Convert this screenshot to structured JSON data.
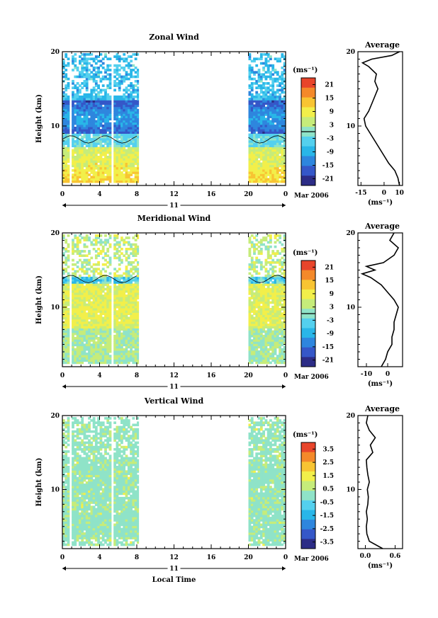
{
  "chart_data": [
    {
      "type": "heatmap",
      "title": "Zonal Wind",
      "ylabel": "Height (km)",
      "ylim": [
        2,
        20
      ],
      "y_ticks": [
        "10",
        "20"
      ],
      "x_ticks": [
        "0",
        "4",
        "8",
        "12",
        "16",
        "20",
        "0"
      ],
      "xlim": [
        0,
        24
      ],
      "day_label": "11",
      "date_label": "Mar 2006",
      "colorbar": {
        "unit": "(ms⁻¹)",
        "ticks": [
          "21",
          "15",
          "9",
          "3",
          "-3",
          "-9",
          "-15",
          "-21"
        ],
        "range": [
          -24,
          24
        ]
      },
      "data_windows_hours": [
        [
          0,
          8.2
        ],
        [
          20,
          24
        ]
      ],
      "average_profile": {
        "title": "Average",
        "xlabel": "(ms⁻¹)",
        "x_ticks": [
          "-15",
          "0",
          "10"
        ],
        "xlim": [
          -17,
          12
        ],
        "heights_km": [
          2,
          3,
          4,
          5,
          6,
          7,
          8,
          9,
          10,
          11,
          12,
          13,
          14,
          15,
          16,
          17,
          18,
          18.5,
          19,
          19.5,
          20
        ],
        "values": [
          10,
          9,
          7,
          3,
          0,
          -3,
          -6,
          -9,
          -12,
          -13,
          -10,
          -8,
          -6,
          -4,
          -6,
          -5,
          -10,
          -14,
          -8,
          5,
          10
        ]
      }
    },
    {
      "type": "heatmap",
      "title": "Meridional Wind",
      "ylabel": "Height (km)",
      "ylim": [
        2,
        20
      ],
      "y_ticks": [
        "10",
        "20"
      ],
      "x_ticks": [
        "0",
        "4",
        "8",
        "12",
        "16",
        "20",
        "0"
      ],
      "xlim": [
        0,
        24
      ],
      "day_label": "11",
      "date_label": "Mar 2006",
      "colorbar": {
        "unit": "(ms⁻¹)",
        "ticks": [
          "21",
          "15",
          "9",
          "3",
          "-3",
          "-9",
          "-15",
          "-21"
        ],
        "range": [
          -24,
          24
        ]
      },
      "data_windows_hours": [
        [
          0,
          8.2
        ],
        [
          20,
          24
        ]
      ],
      "average_profile": {
        "title": "Average",
        "xlabel": "(ms⁻¹)",
        "x_ticks": [
          "-10",
          "0"
        ],
        "xlim": [
          -14,
          7
        ],
        "heights_km": [
          2,
          3,
          4,
          5,
          6,
          7,
          8,
          9,
          10,
          11,
          12,
          13,
          14,
          14.5,
          15,
          15.5,
          16,
          17,
          18,
          19,
          20
        ],
        "values": [
          -3,
          -1,
          0,
          2,
          2,
          3,
          3,
          4,
          5,
          3,
          0,
          -3,
          -8,
          -12,
          -6,
          -10,
          -2,
          3,
          5,
          1,
          3
        ]
      }
    },
    {
      "type": "heatmap",
      "title": "Vertical Wind",
      "ylabel": "Height (km)",
      "xlabel": "Local Time",
      "ylim": [
        2,
        20
      ],
      "y_ticks": [
        "10",
        "20"
      ],
      "x_ticks": [
        "0",
        "4",
        "8",
        "12",
        "16",
        "20",
        "0"
      ],
      "xlim": [
        0,
        24
      ],
      "day_label": "11",
      "date_label": "Mar 2006",
      "colorbar": {
        "unit": "(ms⁻¹)",
        "ticks": [
          "3.5",
          "2.5",
          "1.5",
          "0.5",
          "-0.5",
          "-1.5",
          "-2.5",
          "-3.5"
        ],
        "range": [
          -4,
          4
        ]
      },
      "data_windows_hours": [
        [
          0,
          8.2
        ],
        [
          20,
          24
        ]
      ],
      "average_profile": {
        "title": "Average",
        "xlabel": "(ms⁻¹)",
        "x_ticks": [
          "0.0",
          "0.6"
        ],
        "xlim": [
          -0.15,
          0.75
        ],
        "heights_km": [
          2,
          3,
          4,
          5,
          6,
          7,
          8,
          9,
          10,
          11,
          12,
          13,
          14,
          15,
          16,
          17,
          18,
          19,
          20
        ],
        "values": [
          0.35,
          0.08,
          0.03,
          0.02,
          0.04,
          0.02,
          0.05,
          0.06,
          0.04,
          0.08,
          0.05,
          0.03,
          0.02,
          0.15,
          0.1,
          0.2,
          0.08,
          0.02,
          0.05
        ]
      }
    }
  ],
  "colors": {
    "scale": [
      "#2c2c86",
      "#3557c8",
      "#2e86de",
      "#29b6e8",
      "#54d0ee",
      "#8fe3c8",
      "#c6ec7a",
      "#f2ef4a",
      "#f8c432",
      "#f4892a",
      "#e8452b"
    ]
  }
}
